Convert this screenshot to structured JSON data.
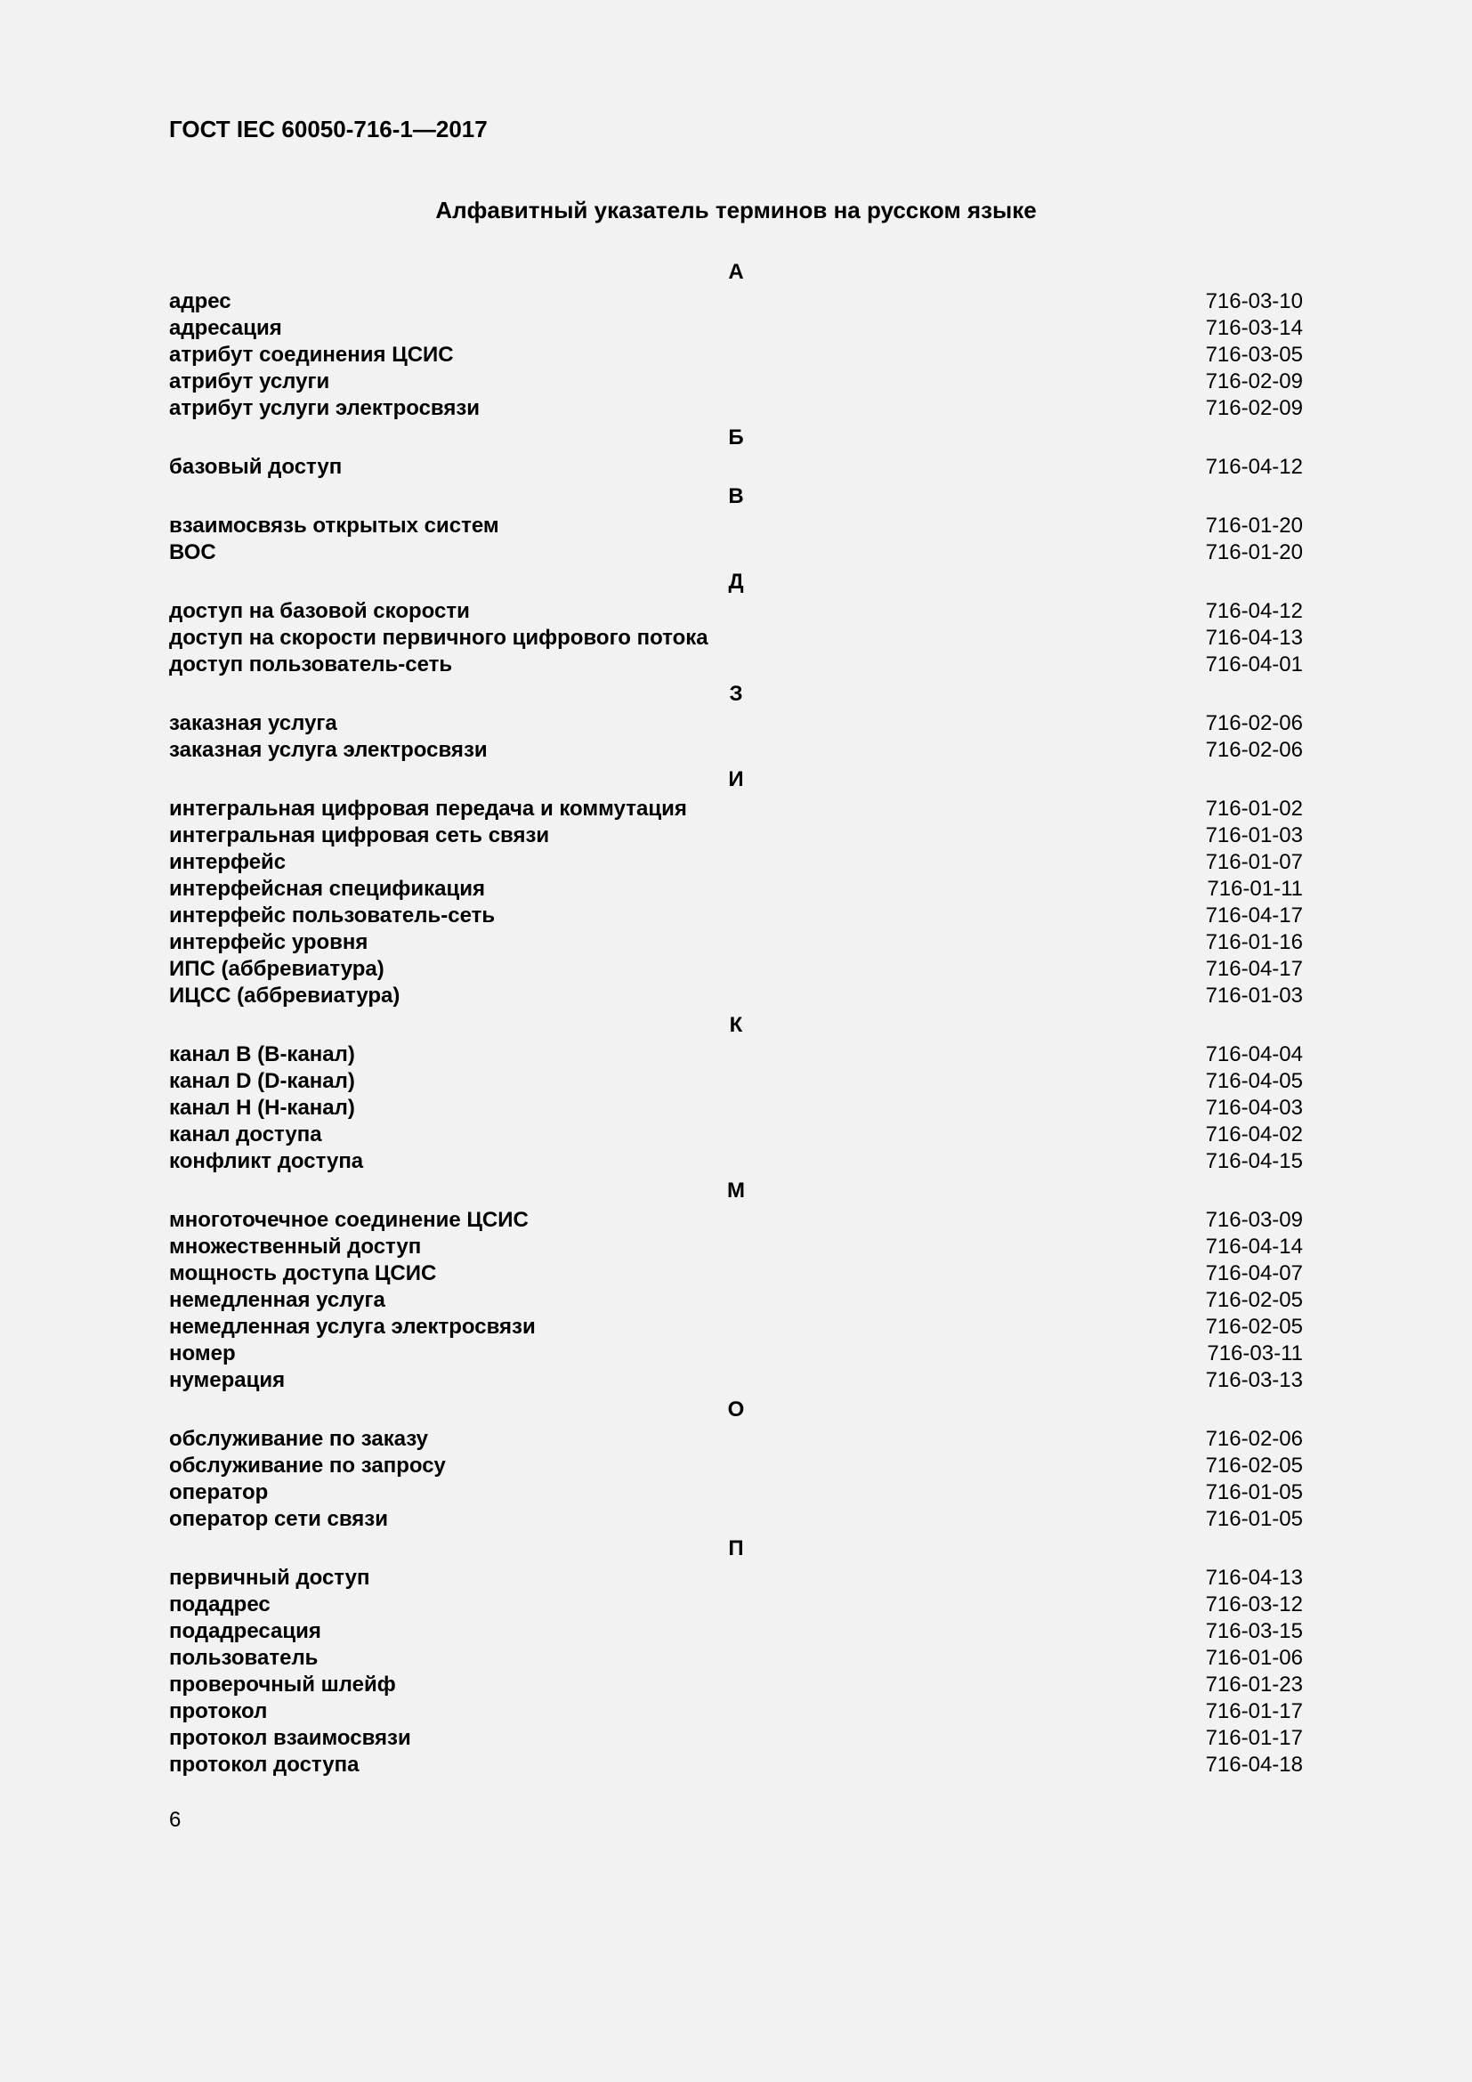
{
  "doc_id": "ГОСТ IEC 60050-716-1—2017",
  "title": "Алфавитный указатель терминов на русском языке",
  "page_number": "6",
  "text_color": "#000000",
  "background_color": "#f2f2f2",
  "font_family": "Arial",
  "title_fontsize": 26,
  "body_fontsize": 24,
  "sections": [
    {
      "letter": "А",
      "entries": [
        {
          "term": "адрес",
          "code": "716-03-10"
        },
        {
          "term": "адресация",
          "code": "716-03-14"
        },
        {
          "term": "атрибут соединения ЦСИС",
          "code": "716-03-05"
        },
        {
          "term": "атрибут услуги",
          "code": "716-02-09"
        },
        {
          "term": "атрибут услуги электросвязи",
          "code": "716-02-09"
        }
      ]
    },
    {
      "letter": "Б",
      "entries": [
        {
          "term": "базовый доступ",
          "code": "716-04-12"
        }
      ]
    },
    {
      "letter": "В",
      "entries": [
        {
          "term": "взаимосвязь открытых систем",
          "code": "716-01-20"
        },
        {
          "term": "ВОС",
          "code": "716-01-20"
        }
      ]
    },
    {
      "letter": "Д",
      "entries": [
        {
          "term": "доступ на базовой скорости",
          "code": "716-04-12"
        },
        {
          "term": "доступ на скорости первичного цифрового потока",
          "code": "716-04-13"
        },
        {
          "term": "доступ пользователь-сеть",
          "code": "716-04-01"
        }
      ]
    },
    {
      "letter": "З",
      "entries": [
        {
          "term": "заказная услуга",
          "code": "716-02-06"
        },
        {
          "term": "заказная услуга электросвязи",
          "code": "716-02-06"
        }
      ]
    },
    {
      "letter": "И",
      "entries": [
        {
          "term": "интегральная цифровая передача и коммутация",
          "code": "716-01-02"
        },
        {
          "term": "интегральная цифровая сеть связи",
          "code": "716-01-03"
        },
        {
          "term": "интерфейс",
          "code": "716-01-07"
        },
        {
          "term": "интерфейсная спецификация",
          "code": "716-01-11"
        },
        {
          "term": "интерфейс пользователь-сеть",
          "code": "716-04-17"
        },
        {
          "term": "интерфейс уровня",
          "code": "716-01-16"
        },
        {
          "term": "ИПС (аббревиатура)",
          "code": "716-04-17"
        },
        {
          "term": "ИЦСС (аббревиатура)",
          "code": "716-01-03"
        }
      ]
    },
    {
      "letter": "К",
      "entries": [
        {
          "term": "канал B (B-канал)",
          "code": "716-04-04"
        },
        {
          "term": "канал D (D-канал)",
          "code": "716-04-05"
        },
        {
          "term": "канал H (H-канал)",
          "code": "716-04-03"
        },
        {
          "term": "канал доступа",
          "code": "716-04-02"
        },
        {
          "term": "конфликт доступа",
          "code": "716-04-15"
        }
      ]
    },
    {
      "letter": "М",
      "entries": [
        {
          "term": "многоточечное соединение ЦСИС",
          "code": "716-03-09"
        },
        {
          "term": "множественный доступ",
          "code": "716-04-14"
        },
        {
          "term": "мощность доступа ЦСИС",
          "code": "716-04-07"
        },
        {
          "term": "немедленная услуга",
          "code": "716-02-05"
        },
        {
          "term": "немедленная услуга электросвязи",
          "code": "716-02-05"
        },
        {
          "term": "номер",
          "code": "716-03-11"
        },
        {
          "term": "нумерация",
          "code": "716-03-13"
        }
      ]
    },
    {
      "letter": "О",
      "entries": [
        {
          "term": "обслуживание по заказу",
          "code": "716-02-06"
        },
        {
          "term": "обслуживание по запросу",
          "code": "716-02-05"
        },
        {
          "term": "оператор",
          "code": "716-01-05"
        },
        {
          "term": "оператор сети связи",
          "code": "716-01-05"
        }
      ]
    },
    {
      "letter": "П",
      "entries": [
        {
          "term": "первичный доступ",
          "code": "716-04-13"
        },
        {
          "term": "подадрес",
          "code": "716-03-12"
        },
        {
          "term": "подадресация",
          "code": "716-03-15"
        },
        {
          "term": "пользователь",
          "code": "716-01-06"
        },
        {
          "term": "проверочный шлейф",
          "code": "716-01-23"
        },
        {
          "term": "протокол",
          "code": "716-01-17"
        },
        {
          "term": "протокол взаимосвязи",
          "code": "716-01-17"
        },
        {
          "term": "протокол доступа",
          "code": "716-04-18"
        }
      ]
    }
  ]
}
